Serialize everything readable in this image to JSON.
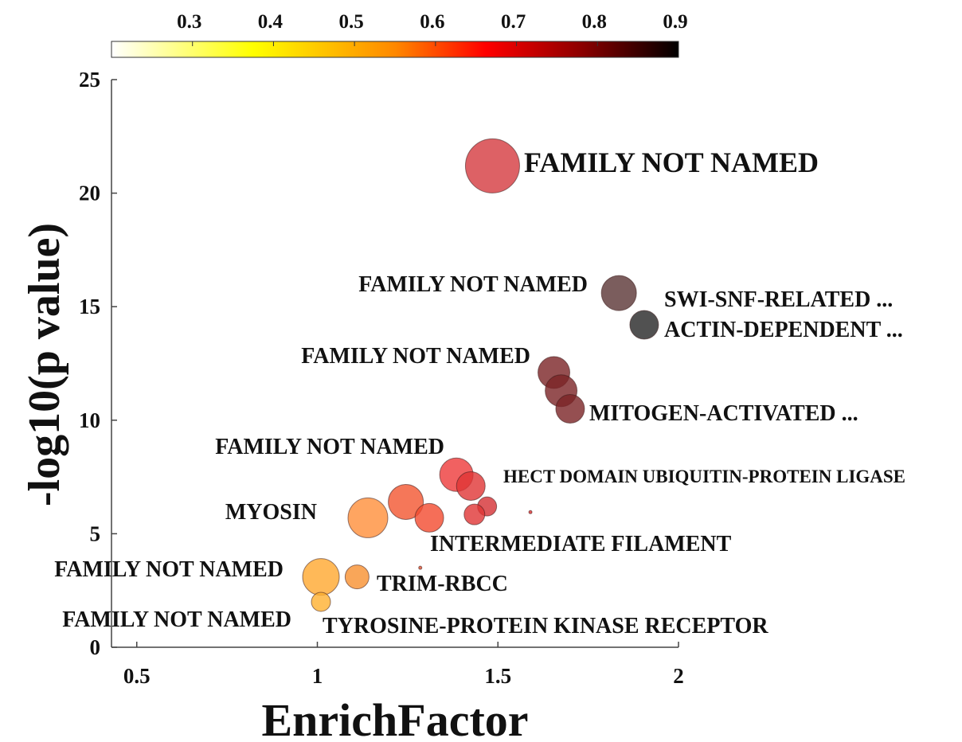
{
  "chart_data": {
    "type": "scatter",
    "title": "",
    "xlabel": "EnrichFactor",
    "ylabel": "-log10(p value)",
    "xlim": [
      0.43,
      2.0
    ],
    "ylim": [
      0,
      25
    ],
    "xticks": [
      0.5,
      1,
      1.5,
      2
    ],
    "xtick_labels": [
      "0.5",
      "1",
      "1.5",
      "2"
    ],
    "yticks": [
      0,
      5,
      10,
      15,
      20,
      25
    ],
    "ytick_labels": [
      "0",
      "5",
      "10",
      "15",
      "20",
      "25"
    ],
    "colorbar": {
      "location": "top",
      "colormap": "hot (reversed)",
      "range": [
        0.2,
        0.9
      ],
      "ticks": [
        0.3,
        0.4,
        0.5,
        0.6,
        0.7,
        0.8,
        0.9
      ],
      "tick_labels": [
        "0.3",
        "0.4",
        "0.5",
        "0.6",
        "0.7",
        "0.8",
        "0.9"
      ],
      "stops": [
        {
          "offset": 0.0,
          "color": "#ffffff"
        },
        {
          "offset": 0.25,
          "color": "#ffff00"
        },
        {
          "offset": 0.5,
          "color": "#ff8800"
        },
        {
          "offset": 0.66,
          "color": "#ff0000"
        },
        {
          "offset": 0.83,
          "color": "#8b0000"
        },
        {
          "offset": 1.0,
          "color": "#000000"
        }
      ]
    },
    "points": [
      {
        "x": 1.485,
        "y": 21.2,
        "size": 34,
        "color": "#d43a3f",
        "label": "FAMILY NOT NAMED"
      },
      {
        "x": 1.835,
        "y": 15.6,
        "size": 22,
        "color": "#5a3434",
        "label": "FAMILY NOT NAMED"
      },
      {
        "x": 1.905,
        "y": 14.2,
        "size": 18,
        "color": "#262626",
        "label": "SWI-SNF-RELATED ..."
      },
      {
        "x": 1.655,
        "y": 12.1,
        "size": 20,
        "color": "#7a2325",
        "label": "ACTIN-DEPENDENT ..."
      },
      {
        "x": 1.675,
        "y": 11.3,
        "size": 20,
        "color": "#7a2325",
        "label": "FAMILY NOT NAMED"
      },
      {
        "x": 1.7,
        "y": 10.5,
        "size": 18,
        "color": "#7a2325",
        "label": "MITOGEN-ACTIVATED ..."
      },
      {
        "x": 1.385,
        "y": 7.6,
        "size": 21,
        "color": "#ee3a3a",
        "label": "FAMILY NOT NAMED"
      },
      {
        "x": 1.425,
        "y": 7.1,
        "size": 18,
        "color": "#e03535",
        "label": "HECT DOMAIN UBIQUITIN-PROTEIN LIGASE"
      },
      {
        "x": 1.47,
        "y": 6.2,
        "size": 12,
        "color": "#d53033",
        "label": ""
      },
      {
        "x": 1.435,
        "y": 5.85,
        "size": 13,
        "color": "#e03535",
        "label": ""
      },
      {
        "x": 1.245,
        "y": 6.4,
        "size": 22,
        "color": "#f2552f",
        "label": "MYOSIN"
      },
      {
        "x": 1.31,
        "y": 5.7,
        "size": 18,
        "color": "#f24a2e",
        "label": "INTERMEDIATE FILAMENT"
      },
      {
        "x": 1.14,
        "y": 5.7,
        "size": 25,
        "color": "#ff8f3a",
        "label": ""
      },
      {
        "x": 1.59,
        "y": 5.95,
        "size": 2,
        "color": "#e03030",
        "label": ""
      },
      {
        "x": 1.285,
        "y": 3.5,
        "size": 2,
        "color": "#e05030",
        "label": ""
      },
      {
        "x": 1.01,
        "y": 3.1,
        "size": 23,
        "color": "#ffa82e",
        "label": "FAMILY NOT NAMED"
      },
      {
        "x": 1.11,
        "y": 3.1,
        "size": 15,
        "color": "#f89030",
        "label": "TRIM-RBCC"
      },
      {
        "x": 1.01,
        "y": 2.0,
        "size": 12,
        "color": "#ffb030",
        "label": "FAMILY NOT NAMED"
      },
      {
        "x": 1.38,
        "y": 0.0,
        "size": 0,
        "color": "#ffb030",
        "label": "TYROSINE-PROTEIN KINASE RECEPTOR"
      }
    ]
  }
}
